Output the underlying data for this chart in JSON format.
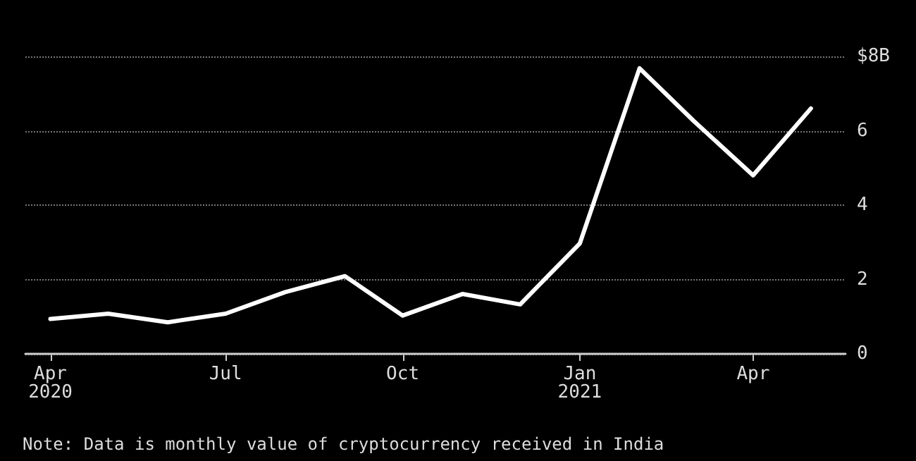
{
  "chart_data": {
    "type": "line",
    "x": [
      "2020-04",
      "2020-05",
      "2020-06",
      "2020-07",
      "2020-08",
      "2020-09",
      "2020-10",
      "2020-11",
      "2020-12",
      "2021-01",
      "2021-02",
      "2021-03",
      "2021-04",
      "2021-05"
    ],
    "series": [
      {
        "color": "#ffffff",
        "values": [
          0.94,
          1.08,
          0.85,
          1.08,
          1.66,
          2.09,
          1.03,
          1.61,
          1.33,
          2.97,
          7.68,
          6.27,
          4.8,
          6.6
        ]
      }
    ],
    "xlim": [
      "2020-03-19",
      "2021-05-19"
    ],
    "xticks": [
      {
        "value": "2020-04",
        "label": "Apr\n2020"
      },
      {
        "value": "2020-07",
        "label": "Jul"
      },
      {
        "value": "2020-10",
        "label": "Oct"
      },
      {
        "value": "2021-01",
        "label": "Jan\n2021"
      },
      {
        "value": "2021-04",
        "label": "Apr"
      }
    ],
    "ylim": [
      0,
      8
    ],
    "yticks": [
      0,
      2,
      4,
      6,
      {
        "value": 8,
        "label": "$8B"
      }
    ],
    "grid": "y",
    "marker": "none",
    "line_style": "solid",
    "annotations": [
      "Note: Data is monthly value of cryptocurrency received in India"
    ]
  }
}
